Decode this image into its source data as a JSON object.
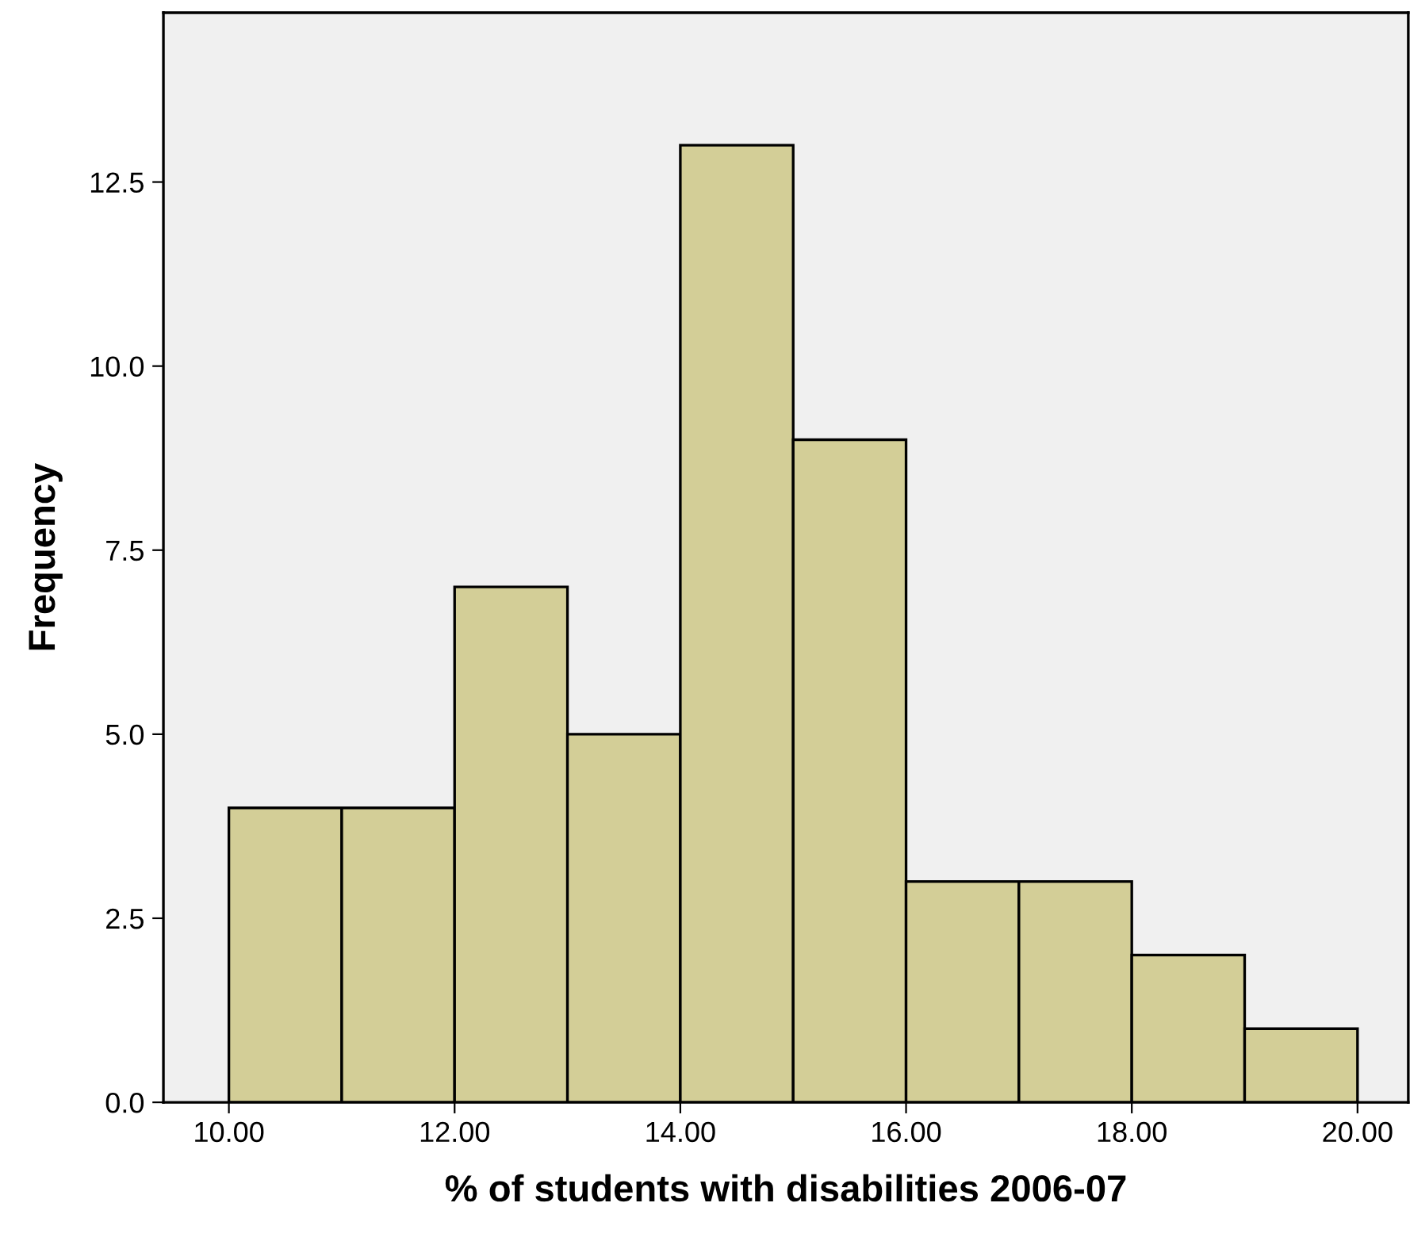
{
  "chart_data": {
    "type": "histogram",
    "xlabel": "% of students with disabilities 2006-07",
    "ylabel": "Frequency",
    "bins": [
      10,
      11,
      12,
      13,
      14,
      15,
      16,
      17,
      18,
      19,
      20
    ],
    "values": [
      4,
      4,
      7,
      5,
      13,
      9,
      3,
      3,
      2,
      1
    ],
    "color": "#d3ce97",
    "xlim": [
      9.42,
      20.45
    ],
    "ylim": [
      0,
      14.8
    ],
    "xticks": [
      {
        "value": 10,
        "label": "10.00"
      },
      {
        "value": 12,
        "label": "12.00"
      },
      {
        "value": 14,
        "label": "14.00"
      },
      {
        "value": 16,
        "label": "16.00"
      },
      {
        "value": 18,
        "label": "18.00"
      },
      {
        "value": 20,
        "label": "20.00"
      }
    ],
    "yticks": [
      {
        "value": 0,
        "label": "0.0"
      },
      {
        "value": 2.5,
        "label": "2.5"
      },
      {
        "value": 5,
        "label": "5.0"
      },
      {
        "value": 7.5,
        "label": "7.5"
      },
      {
        "value": 10,
        "label": "10.0"
      },
      {
        "value": 12.5,
        "label": "12.5"
      }
    ],
    "grid": false
  }
}
